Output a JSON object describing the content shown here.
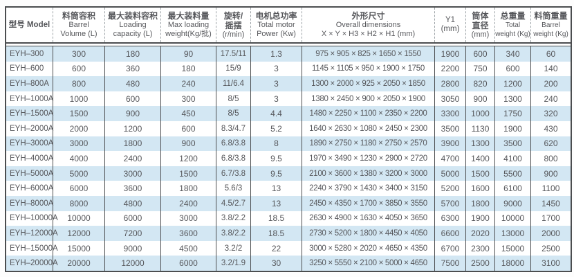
{
  "table": {
    "columns": [
      {
        "id": "model",
        "lines": [
          "型号 Model"
        ]
      },
      {
        "id": "barrel-volume",
        "lines": [
          "料筒容积",
          "Barrel",
          "Volume (L)"
        ]
      },
      {
        "id": "loading-capacity",
        "lines": [
          "最大装料容积",
          "Loading",
          "capacity (L)"
        ]
      },
      {
        "id": "max-loading-weight",
        "lines": [
          "最大装料量",
          "Max loading",
          "weight(Kg/批)"
        ]
      },
      {
        "id": "rotation-speed",
        "lines": [
          "旋转/",
          "摇摆",
          "(r/min)"
        ]
      },
      {
        "id": "motor-power",
        "lines": [
          "电机总功率",
          "Total motor",
          "Power (Kw)"
        ]
      },
      {
        "id": "overall-dimensions",
        "lines": [
          "外形尺寸",
          "Overall dimensions",
          "X × Y × H3 × H2 × H1 (mm)"
        ]
      },
      {
        "id": "y1",
        "lines": [
          "Y1",
          "(mm)"
        ]
      },
      {
        "id": "drum-diameter",
        "lines": [
          "筒体",
          "直径",
          "(mm)"
        ]
      },
      {
        "id": "total-weight",
        "lines": [
          "总重量",
          "Total",
          "weight (Kg)"
        ]
      },
      {
        "id": "barrel-weight",
        "lines": [
          "料筒重量",
          "Barrel",
          "weight (Kg)"
        ]
      }
    ],
    "rows": [
      [
        "EYH–300",
        "300",
        "180",
        "90",
        "17.5/11",
        "1.3",
        "975 × 905 × 825 × 1650 × 1550",
        "1900",
        "600",
        "340",
        "60"
      ],
      [
        "EYH–600",
        "600",
        "360",
        "180",
        "15/9",
        "3",
        "1145 × 1105 × 950 × 1900 × 1750",
        "2200",
        "750",
        "600",
        "140"
      ],
      [
        "EYH–800A",
        "800",
        "480",
        "240",
        "11/6.4",
        "3",
        "1300 × 2000 × 925 × 2050 × 1850",
        "2800",
        "820",
        "1200",
        "200"
      ],
      [
        "EYH–1000A",
        "1000",
        "600",
        "300",
        "8/5",
        "3",
        "1380 × 2450 × 900 × 2050 × 1900",
        "3050",
        "900",
        "1300",
        "240"
      ],
      [
        "EYH–1500A",
        "1500",
        "900",
        "450",
        "8/5",
        "4.4",
        "1480 × 2250 × 1100 × 2350 × 2200",
        "3300",
        "1000",
        "1750",
        "320"
      ],
      [
        "EYH–2000A",
        "2000",
        "1200",
        "600",
        "8.3/4.7",
        "5.2",
        "1640 × 2630 × 1080 × 2450 × 2300",
        "3500",
        "1130",
        "1900",
        "430"
      ],
      [
        "EYH–3000A",
        "3000",
        "1800",
        "900",
        "6.8/3.8",
        "8",
        "1890 × 2750 × 1180 × 2750 × 2570",
        "3900",
        "1300",
        "3500",
        "620"
      ],
      [
        "EYH–4000A",
        "4000",
        "2400",
        "1200",
        "6.8/3.8",
        "9.5",
        "1970 × 3490 × 1230 × 2900 × 2720",
        "4700",
        "1400",
        "4100",
        "800"
      ],
      [
        "EYH–5000A",
        "5000",
        "3000",
        "1500",
        "6.7/3.8",
        "9.5",
        "2100 × 3600 × 1380 × 3200 × 3000",
        "5000",
        "1500",
        "5500",
        "900"
      ],
      [
        "EYH–6000A",
        "6000",
        "3600",
        "1800",
        "5.6/3",
        "13",
        "2240 × 3790 × 1430 × 3400 × 3150",
        "5200",
        "1600",
        "6100",
        "1100"
      ],
      [
        "EYH–8000A",
        "8000",
        "4800",
        "2400",
        "4.5/2.7",
        "13",
        "2450 × 4350 × 1700 × 3850 × 3550",
        "5700",
        "1800",
        "9000",
        "1450"
      ],
      [
        "EYH–10000A",
        "10000",
        "6000",
        "3000",
        "3.8/2.2",
        "18.5",
        "2630 × 4900 × 1630 × 4050 × 3650",
        "6300",
        "1900",
        "10000",
        "1700"
      ],
      [
        "EYH–12000A",
        "12000",
        "7200",
        "3600",
        "3.8/2.2",
        "18.5",
        "2730 × 5200 × 1800 × 4450 × 4050",
        "6600",
        "2020",
        "13000",
        "2000"
      ],
      [
        "EYH–15000A",
        "15000",
        "9000",
        "4500",
        "3.2/2",
        "22",
        "3000 × 5280 × 2020 × 4650 × 4350",
        "6700",
        "2300",
        "15000",
        "2500"
      ],
      [
        "EYH–20000A",
        "20000",
        "12000",
        "6000",
        "3.2/1.9",
        "30",
        "3250 × 5550 × 2100 × 5000 × 4650",
        "7500",
        "2500",
        "18000",
        "3100"
      ]
    ]
  },
  "colors": {
    "row_alternate": "#d3e7f3",
    "border": "#4b4d4f",
    "text": "#55565a"
  }
}
